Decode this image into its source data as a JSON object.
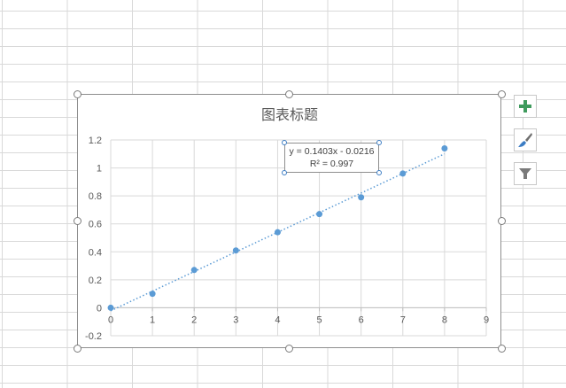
{
  "chart_data": {
    "type": "scatter",
    "title": "图表标题",
    "x": [
      0,
      1,
      2,
      3,
      4,
      5,
      6,
      7,
      8
    ],
    "y": [
      0,
      0.1,
      0.27,
      0.41,
      0.54,
      0.67,
      0.79,
      0.96,
      1.14
    ],
    "xlim": [
      0,
      9
    ],
    "ylim": [
      -0.2,
      1.2
    ],
    "xticks": [
      0,
      1,
      2,
      3,
      4,
      5,
      6,
      7,
      8,
      9
    ],
    "yticks": [
      -0.2,
      0,
      0.2,
      0.4,
      0.6,
      0.8,
      1,
      1.2
    ],
    "ytick_labels": [
      "-0.2",
      "0",
      "0.2",
      "0.4",
      "0.6",
      "0.8",
      "1",
      "1.2"
    ],
    "grid": true,
    "trendline": {
      "type": "linear",
      "slope": 0.1403,
      "intercept": -0.0216,
      "equation": "y = 0.1403x - 0.0216",
      "r_squared": "R² = 0.997"
    },
    "colors": {
      "marker": "#5b9bd5",
      "grid": "#d9d9d9",
      "axis_text": "#595959"
    }
  },
  "toolbar": {
    "icons": [
      "plus-icon",
      "paintbrush-icon",
      "filter-icon"
    ]
  }
}
